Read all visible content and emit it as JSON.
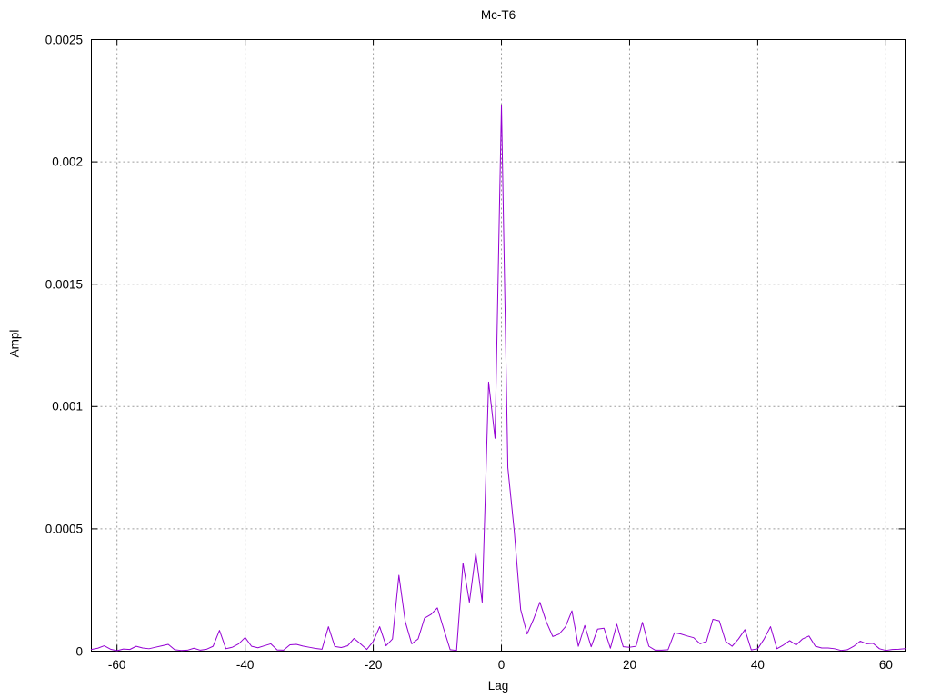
{
  "window": {
    "background": "#ffffff",
    "text_color": "#000000"
  },
  "chart_data": {
    "type": "line",
    "title": "Mc-T6",
    "xlabel": "Lag",
    "ylabel": "Ampl",
    "xlim": [
      -64,
      63
    ],
    "ylim": [
      0,
      0.0025
    ],
    "grid": "dotted",
    "legend": "none",
    "line_color": "#9400d3",
    "grid_color": "#9c9c9c",
    "axis_color": "#000000",
    "xticks": {
      "values": [
        -60,
        -40,
        -20,
        0,
        20,
        40,
        60
      ],
      "labels": [
        "-60",
        "-40",
        "-20",
        "0",
        "20",
        "40",
        "60"
      ]
    },
    "yticks": {
      "values": [
        0,
        0.0005,
        0.001,
        0.0015,
        0.002,
        0.0025
      ],
      "labels": [
        "0",
        "0.0005",
        "0.001",
        "0.0015",
        "0.002",
        "0.0025"
      ]
    },
    "series": [
      {
        "name": "Mc-T6",
        "x_start": -64,
        "x_step": 1,
        "x": [
          -64,
          -63,
          -62,
          -61,
          -60,
          -59,
          -58,
          -57,
          -56,
          -55,
          -54,
          -53,
          -52,
          -51,
          -50,
          -49,
          -48,
          -47,
          -46,
          -45,
          -44,
          -43,
          -42,
          -41,
          -40,
          -39,
          -38,
          -37,
          -36,
          -35,
          -34,
          -33,
          -32,
          -31,
          -30,
          -29,
          -28,
          -27,
          -26,
          -25,
          -24,
          -23,
          -22,
          -21,
          -20,
          -19,
          -18,
          -17,
          -16,
          -15,
          -14,
          -13,
          -12,
          -11,
          -10,
          -9,
          -8,
          -7,
          -6,
          -5,
          -4,
          -3,
          -2,
          -1,
          0,
          1,
          2,
          3,
          4,
          5,
          6,
          7,
          8,
          9,
          10,
          11,
          12,
          13,
          14,
          15,
          16,
          17,
          18,
          19,
          20,
          21,
          22,
          23,
          24,
          25,
          26,
          27,
          28,
          29,
          30,
          31,
          32,
          33,
          34,
          35,
          36,
          37,
          38,
          39,
          40,
          41,
          42,
          43,
          44,
          45,
          46,
          47,
          48,
          49,
          50,
          51,
          52,
          53,
          54,
          55,
          56,
          57,
          58,
          59,
          60,
          61,
          62,
          63
        ],
        "y": [
          7e-06,
          1.2e-05,
          2.2e-05,
          8e-06,
          2e-06,
          9e-06,
          7e-06,
          2e-05,
          1.3e-05,
          1e-05,
          1.6e-05,
          2.2e-05,
          2.8e-05,
          6e-06,
          3e-06,
          4e-06,
          1.2e-05,
          4e-06,
          8e-06,
          2e-05,
          8.5e-05,
          1e-05,
          1.6e-05,
          3e-05,
          5.6e-05,
          2e-05,
          1.4e-05,
          2.2e-05,
          3e-05,
          5e-06,
          4e-06,
          2.6e-05,
          2.8e-05,
          2.1e-05,
          1.6e-05,
          1.1e-05,
          8e-06,
          0.0001,
          1.9e-05,
          1.5e-05,
          2.2e-05,
          5.2e-05,
          3e-05,
          7e-06,
          4e-05,
          0.0001,
          2.2e-05,
          5e-05,
          0.00031,
          0.00012,
          3e-05,
          5e-05,
          0.000135,
          0.00015,
          0.000177,
          9e-05,
          6e-06,
          3e-06,
          0.00036,
          0.0002,
          0.0004,
          0.0002,
          0.0011,
          0.00087,
          0.00223,
          0.00075,
          0.00049,
          0.00017,
          7e-05,
          0.00013,
          0.0002,
          0.00012,
          6e-05,
          7e-05,
          0.0001,
          0.000165,
          2e-05,
          0.000105,
          1.8e-05,
          9e-05,
          9.4e-05,
          1.2e-05,
          0.00011,
          1.8e-05,
          1.6e-05,
          2e-05,
          0.000118,
          2e-05,
          4e-06,
          4e-06,
          6e-06,
          7.5e-05,
          7e-05,
          6.2e-05,
          5.5e-05,
          3e-05,
          4e-05,
          0.00013,
          0.000124,
          4e-05,
          2e-05,
          5e-05,
          8.8e-05,
          5e-06,
          1e-05,
          5e-05,
          0.0001,
          1e-05,
          2.5e-05,
          4.3e-05,
          2.5e-05,
          5e-05,
          6.2e-05,
          2e-05,
          1.3e-05,
          1.3e-05,
          1e-05,
          3e-06,
          6e-06,
          2e-05,
          4.1e-05,
          3e-05,
          3.2e-05,
          1e-05,
          3e-06,
          7e-06,
          8e-06,
          1e-05
        ]
      }
    ]
  }
}
